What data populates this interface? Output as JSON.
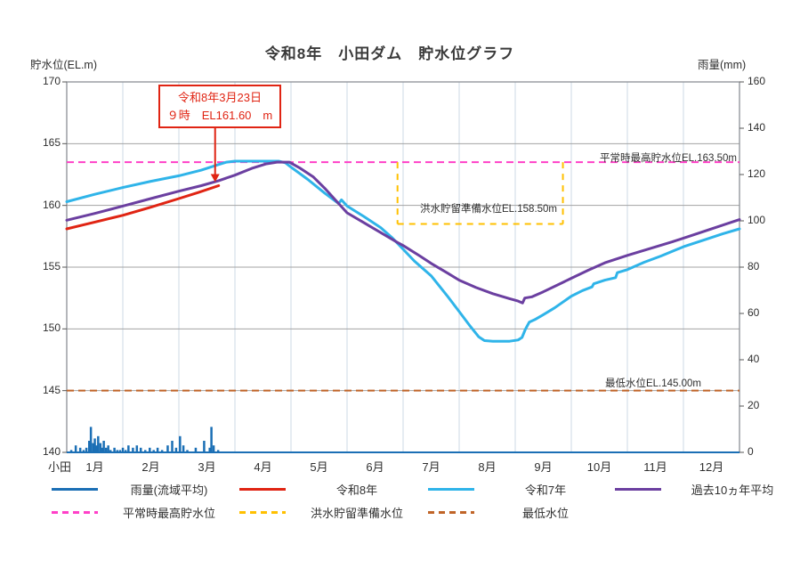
{
  "title": "令和8年　小田ダム　貯水位グラフ",
  "legend": [
    {
      "label": "雨量(流域平均)",
      "color": "#1b6fb5",
      "dashed": false
    },
    {
      "label": "令和8年",
      "color": "#e02413",
      "dashed": false
    },
    {
      "label": "令和7年",
      "color": "#2fb4e9",
      "dashed": false
    },
    {
      "label": "過去10ヵ年平均",
      "color": "#6b3fa0",
      "dashed": false
    },
    {
      "label": "平常時最高貯水位",
      "color": "#ff40c8",
      "dashed": true
    },
    {
      "label": "洪水貯留準備水位",
      "color": "#ffc000",
      "dashed": true
    },
    {
      "label": "最低水位",
      "color": "#c06428",
      "dashed": true
    }
  ],
  "chart_data": {
    "type": "line",
    "title": "令和8年　小田ダム　貯水位グラフ",
    "left_axis": {
      "label": "貯水位(EL.m)",
      "min": 140,
      "max": 170,
      "ticks": [
        170,
        165,
        160,
        155,
        150,
        145,
        140
      ]
    },
    "right_axis": {
      "label": "雨量(mm)",
      "min": 0,
      "max": 160,
      "ticks": [
        160,
        140,
        120,
        100,
        80,
        60,
        40,
        20,
        0
      ]
    },
    "x_axis": {
      "station": "小田",
      "months": [
        "1月",
        "2月",
        "3月",
        "4月",
        "5月",
        "6月",
        "7月",
        "8月",
        "9月",
        "10月",
        "11月",
        "12月"
      ]
    },
    "grid": {
      "horizontal_values": [
        145,
        150,
        155,
        160,
        165
      ],
      "vertical_every_month": true
    },
    "annotation": {
      "line1": "令和8年3月23日",
      "line2": "９時　EL161.60　m",
      "target_month": 2.71,
      "target_value": 161.6
    },
    "reference_lines": [
      {
        "name": "平常時最高貯水位",
        "value": 163.5,
        "label": "平常時最高貯水位EL.163.50m",
        "color": "#ff40c8",
        "style": "dashed"
      },
      {
        "name": "洪水貯留準備水位",
        "value": 158.5,
        "label": "洪水貯留準備水位EL.158.50m",
        "color": "#ffc000",
        "style": "dashed",
        "box": {
          "month_start": 5.9,
          "month_end": 8.85,
          "top_value": 163.5,
          "bottom_value": 158.5
        }
      },
      {
        "name": "最低水位",
        "value": 145.0,
        "label": "最低水位EL.145.00m",
        "color": "#c06428",
        "style": "dashed"
      }
    ],
    "series": [
      {
        "name": "雨量(流域平均)",
        "type": "bar",
        "axis": "right",
        "color": "#1b6fb5",
        "points": [
          [
            0.08,
            1
          ],
          [
            0.16,
            3
          ],
          [
            0.24,
            2
          ],
          [
            0.3,
            1
          ],
          [
            0.35,
            2
          ],
          [
            0.4,
            5
          ],
          [
            0.43,
            11
          ],
          [
            0.47,
            4
          ],
          [
            0.5,
            6
          ],
          [
            0.53,
            3
          ],
          [
            0.56,
            7
          ],
          [
            0.6,
            4
          ],
          [
            0.63,
            2
          ],
          [
            0.66,
            5
          ],
          [
            0.7,
            2
          ],
          [
            0.74,
            3
          ],
          [
            0.78,
            1
          ],
          [
            0.85,
            2
          ],
          [
            0.9,
            1
          ],
          [
            0.95,
            1
          ],
          [
            1.0,
            2
          ],
          [
            1.05,
            1
          ],
          [
            1.1,
            3
          ],
          [
            1.18,
            2
          ],
          [
            1.25,
            3
          ],
          [
            1.32,
            2
          ],
          [
            1.4,
            1
          ],
          [
            1.48,
            2
          ],
          [
            1.55,
            1
          ],
          [
            1.62,
            2
          ],
          [
            1.7,
            1
          ],
          [
            1.8,
            3
          ],
          [
            1.88,
            5
          ],
          [
            1.95,
            2
          ],
          [
            2.02,
            7
          ],
          [
            2.08,
            3
          ],
          [
            2.15,
            1
          ],
          [
            2.3,
            2
          ],
          [
            2.45,
            5
          ],
          [
            2.55,
            2
          ],
          [
            2.58,
            11
          ],
          [
            2.62,
            3
          ],
          [
            2.7,
            1
          ]
        ]
      },
      {
        "name": "令和8年",
        "type": "line",
        "axis": "left",
        "color": "#e02413",
        "width": 3,
        "points": [
          [
            0,
            158.1
          ],
          [
            0.5,
            158.65
          ],
          [
            1,
            159.2
          ],
          [
            1.5,
            159.85
          ],
          [
            2,
            160.55
          ],
          [
            2.35,
            161.05
          ],
          [
            2.71,
            161.6
          ]
        ]
      },
      {
        "name": "令和7年",
        "type": "line",
        "axis": "left",
        "color": "#2fb4e9",
        "width": 3,
        "points": [
          [
            0,
            160.3
          ],
          [
            0.5,
            160.9
          ],
          [
            1,
            161.45
          ],
          [
            1.5,
            161.95
          ],
          [
            2,
            162.4
          ],
          [
            2.4,
            162.85
          ],
          [
            2.7,
            163.3
          ],
          [
            2.85,
            163.5
          ],
          [
            3.0,
            163.58
          ],
          [
            3.78,
            163.58
          ],
          [
            3.9,
            163.45
          ],
          [
            4.0,
            163.1
          ],
          [
            4.3,
            162.1
          ],
          [
            4.6,
            161.0
          ],
          [
            4.85,
            160.15
          ],
          [
            4.9,
            160.45
          ],
          [
            5.0,
            159.95
          ],
          [
            5.3,
            159.1
          ],
          [
            5.6,
            158.2
          ],
          [
            5.8,
            157.4
          ],
          [
            6.0,
            156.45
          ],
          [
            6.2,
            155.5
          ],
          [
            6.5,
            154.3
          ],
          [
            6.8,
            152.6
          ],
          [
            7.0,
            151.4
          ],
          [
            7.2,
            150.2
          ],
          [
            7.35,
            149.35
          ],
          [
            7.45,
            149.05
          ],
          [
            7.6,
            149.0
          ],
          [
            7.9,
            149.0
          ],
          [
            8.05,
            149.1
          ],
          [
            8.12,
            149.3
          ],
          [
            8.18,
            149.95
          ],
          [
            8.25,
            150.55
          ],
          [
            8.35,
            150.75
          ],
          [
            8.5,
            151.15
          ],
          [
            8.7,
            151.7
          ],
          [
            9.0,
            152.65
          ],
          [
            9.2,
            153.1
          ],
          [
            9.37,
            153.4
          ],
          [
            9.4,
            153.65
          ],
          [
            9.6,
            153.95
          ],
          [
            9.79,
            154.15
          ],
          [
            9.82,
            154.55
          ],
          [
            10.0,
            154.8
          ],
          [
            10.3,
            155.4
          ],
          [
            10.6,
            155.9
          ],
          [
            11.0,
            156.65
          ],
          [
            11.4,
            157.25
          ],
          [
            11.7,
            157.7
          ],
          [
            12.0,
            158.1
          ]
        ]
      },
      {
        "name": "過去10ヵ年平均",
        "type": "line",
        "axis": "left",
        "color": "#6b3fa0",
        "width": 3,
        "points": [
          [
            0,
            158.8
          ],
          [
            0.5,
            159.35
          ],
          [
            1,
            159.95
          ],
          [
            1.5,
            160.55
          ],
          [
            2,
            161.15
          ],
          [
            2.4,
            161.6
          ],
          [
            2.71,
            162.0
          ],
          [
            3.0,
            162.45
          ],
          [
            3.3,
            163.0
          ],
          [
            3.55,
            163.35
          ],
          [
            3.75,
            163.5
          ],
          [
            3.97,
            163.5
          ],
          [
            4.15,
            163.05
          ],
          [
            4.4,
            162.3
          ],
          [
            4.6,
            161.4
          ],
          [
            4.8,
            160.4
          ],
          [
            5.0,
            159.4
          ],
          [
            5.3,
            158.6
          ],
          [
            5.6,
            157.8
          ],
          [
            5.9,
            157.0
          ],
          [
            6.0,
            156.75
          ],
          [
            6.3,
            155.9
          ],
          [
            6.5,
            155.3
          ],
          [
            6.8,
            154.5
          ],
          [
            7.0,
            153.95
          ],
          [
            7.3,
            153.35
          ],
          [
            7.6,
            152.85
          ],
          [
            7.9,
            152.45
          ],
          [
            8.05,
            152.25
          ],
          [
            8.13,
            152.1
          ],
          [
            8.17,
            152.5
          ],
          [
            8.3,
            152.6
          ],
          [
            8.5,
            153.0
          ],
          [
            8.75,
            153.55
          ],
          [
            9.0,
            154.1
          ],
          [
            9.3,
            154.75
          ],
          [
            9.6,
            155.35
          ],
          [
            10.0,
            155.95
          ],
          [
            10.4,
            156.5
          ],
          [
            10.8,
            157.05
          ],
          [
            11.2,
            157.65
          ],
          [
            11.6,
            158.25
          ],
          [
            12.0,
            158.85
          ]
        ]
      }
    ]
  }
}
